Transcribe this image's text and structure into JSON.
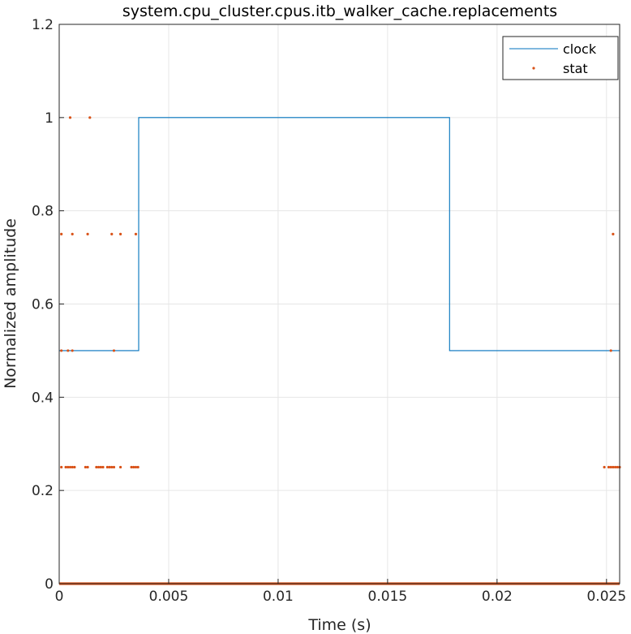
{
  "chart_data": {
    "type": "line",
    "title": "system.cpu_cluster.cpus.itb_walker_cache.replacements",
    "xlabel": "Time (s)",
    "ylabel": "Normalized amplitude",
    "xlim": [
      0,
      0.0256
    ],
    "ylim": [
      0,
      1.2
    ],
    "xticks": [
      0,
      0.005,
      0.01,
      0.015,
      0.02,
      0.025
    ],
    "xtick_labels": [
      "0",
      "0.005",
      "0.01",
      "0.015",
      "0.02",
      "0.025"
    ],
    "yticks": [
      0,
      0.2,
      0.4,
      0.6,
      0.8,
      1.0,
      1.2
    ],
    "ytick_labels": [
      "0",
      "0.2",
      "0.4",
      "0.6",
      "0.8",
      "1",
      "1.2"
    ],
    "grid": true,
    "legend_position": "top-right",
    "series": [
      {
        "name": "clock",
        "style": "step-line",
        "color": "#0072BD",
        "x": [
          0,
          0.00363,
          0.00363,
          0.01783,
          0.01783,
          0.0256
        ],
        "y": [
          0.5,
          0.5,
          1.0,
          1.0,
          0.5,
          0.5
        ]
      },
      {
        "name": "stat",
        "style": "markers",
        "color": "#D95319",
        "points": [
          [
            0.0005,
            1.0
          ],
          [
            0.0014,
            1.0
          ],
          [
            0.0001,
            0.75
          ],
          [
            0.0006,
            0.75
          ],
          [
            0.0013,
            0.75
          ],
          [
            0.0024,
            0.75
          ],
          [
            0.0028,
            0.75
          ],
          [
            0.0035,
            0.75
          ],
          [
            0.0253,
            0.75
          ],
          [
            0.0001,
            0.5
          ],
          [
            0.0004,
            0.5
          ],
          [
            0.0006,
            0.5
          ],
          [
            0.0025,
            0.5
          ],
          [
            0.0252,
            0.5
          ],
          [
            0.0001,
            0.25
          ],
          [
            0.0003,
            0.25
          ],
          [
            0.0004,
            0.25
          ],
          [
            0.0005,
            0.25
          ],
          [
            0.0006,
            0.25
          ],
          [
            0.0007,
            0.25
          ],
          [
            0.0012,
            0.25
          ],
          [
            0.0013,
            0.25
          ],
          [
            0.0017,
            0.25
          ],
          [
            0.0018,
            0.25
          ],
          [
            0.0019,
            0.25
          ],
          [
            0.002,
            0.25
          ],
          [
            0.0022,
            0.25
          ],
          [
            0.0023,
            0.25
          ],
          [
            0.0024,
            0.25
          ],
          [
            0.0025,
            0.25
          ],
          [
            0.0028,
            0.25
          ],
          [
            0.0033,
            0.25
          ],
          [
            0.0034,
            0.25
          ],
          [
            0.0035,
            0.25
          ],
          [
            0.0036,
            0.25
          ],
          [
            0.0249,
            0.25
          ],
          [
            0.0251,
            0.25
          ],
          [
            0.0252,
            0.25
          ],
          [
            0.0253,
            0.25
          ],
          [
            0.0254,
            0.25
          ],
          [
            0.0255,
            0.25
          ],
          [
            0.0256,
            0.25
          ]
        ],
        "dense_zero_range": [
          0,
          0.0256
        ],
        "dense_zero_value": 0
      }
    ]
  }
}
